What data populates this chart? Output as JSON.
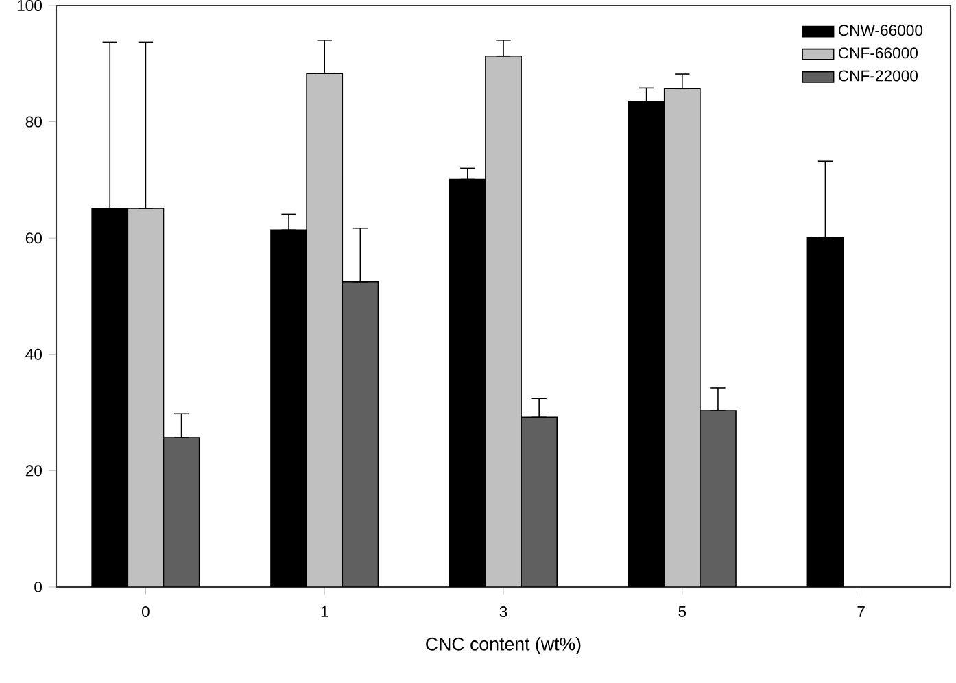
{
  "chart_data": {
    "type": "bar",
    "xlabel": "CNC content (wt%)",
    "categories": [
      "0",
      "1",
      "3",
      "5",
      "7"
    ],
    "series": [
      {
        "name": "CNW-66000",
        "color": "#000000",
        "values": [
          65.1,
          61.4,
          70.1,
          83.5,
          60.1
        ],
        "errors": [
          [
            65.1,
            93.7
          ],
          [
            61.4,
            64.1
          ],
          [
            70.1,
            72.0
          ],
          [
            83.5,
            85.8
          ],
          [
            60.1,
            73.2
          ]
        ]
      },
      {
        "name": "CNF-66000",
        "color": "#c0c0c0",
        "values": [
          65.1,
          88.3,
          91.3,
          85.7,
          null
        ],
        "errors": [
          [
            65.1,
            93.7
          ],
          [
            88.3,
            94.0
          ],
          [
            91.3,
            94.0
          ],
          [
            85.7,
            88.2
          ],
          null
        ]
      },
      {
        "name": "CNF-22000",
        "color": "#606060",
        "values": [
          25.7,
          52.5,
          29.2,
          30.3,
          null
        ],
        "errors": [
          [
            25.7,
            29.8
          ],
          [
            52.5,
            61.7
          ],
          [
            29.2,
            32.4
          ],
          [
            30.3,
            34.2
          ],
          null
        ]
      }
    ],
    "ylim": [
      0,
      100
    ],
    "yticks": [
      0,
      20,
      40,
      60,
      80,
      100
    ],
    "grid": false,
    "legend": "top right"
  }
}
